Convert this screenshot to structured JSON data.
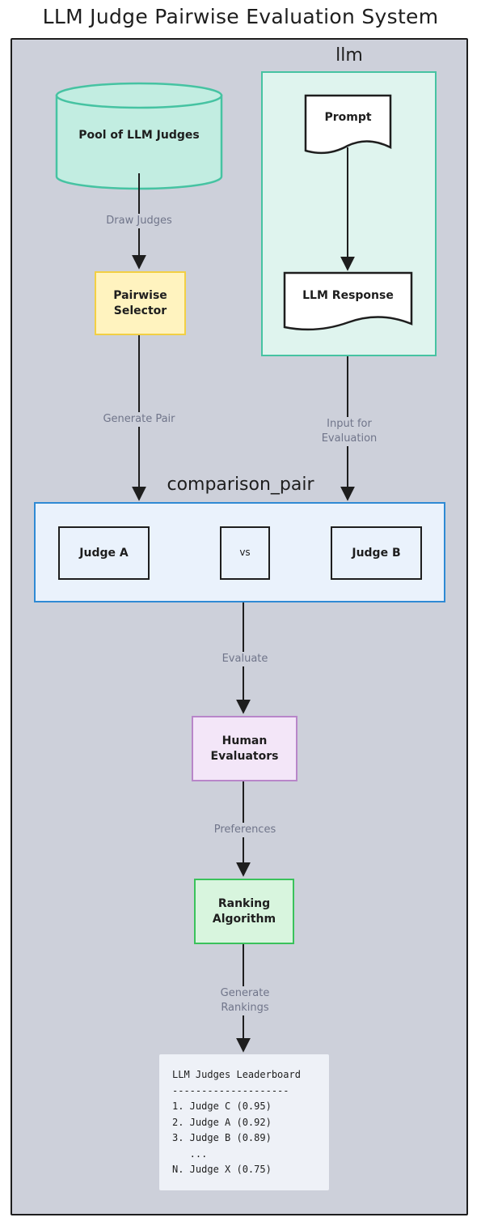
{
  "title": "LLM Judge Pairwise Evaluation System",
  "clusters": {
    "llm": "llm",
    "comparison": "comparison_pair"
  },
  "nodes": {
    "pool": "Pool of LLM Judges",
    "prompt": "Prompt",
    "response": "LLM Response",
    "selector": [
      "Pairwise",
      "Selector"
    ],
    "judge_a": "Judge A",
    "vs": "vs",
    "judge_b": "Judge B",
    "human": [
      "Human",
      "Evaluators"
    ],
    "ranking": [
      "Ranking",
      "Algorithm"
    ]
  },
  "edges": {
    "draw_judges": "Draw Judges",
    "generate_pair": "Generate Pair",
    "input_eval": [
      "Input for",
      "Evaluation"
    ],
    "evaluate": "Evaluate",
    "preferences": "Preferences",
    "generate_rankings": [
      "Generate",
      "Rankings"
    ]
  },
  "leaderboard": {
    "title": "LLM Judges Leaderboard",
    "divider": "--------------------",
    "entries": [
      "1. Judge C (0.95)",
      "2. Judge A (0.92)",
      "3. Judge B (0.89)",
      "   ...",
      "N. Judge X (0.75)"
    ]
  },
  "colors": {
    "background": "#cdd0da",
    "llm_fill": "#dff4ee",
    "llm_stroke": "#46c3a2",
    "selector_fill": "#fff3bf",
    "selector_stroke": "#f2cf44",
    "comparison_fill": "#eaf2fc",
    "comparison_stroke": "#2f8ad4",
    "human_fill": "#f3e6f8",
    "human_stroke": "#b886c9",
    "ranking_fill": "#d8f5de",
    "ranking_stroke": "#3ac25b"
  }
}
